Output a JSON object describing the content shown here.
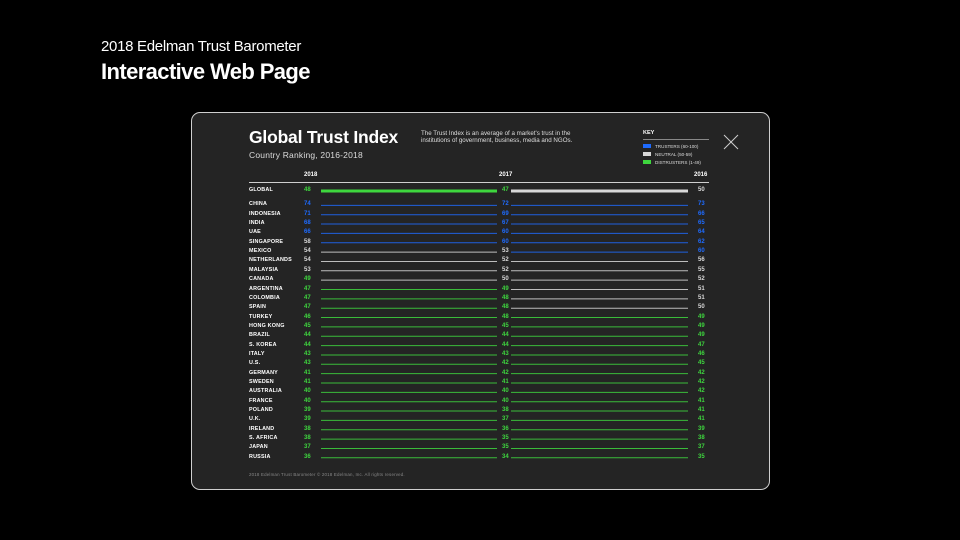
{
  "page": {
    "kicker": "2018 Edelman Trust Barometer",
    "heading": "Interactive Web Page"
  },
  "colors": {
    "background": "#000000",
    "panel": "#242424",
    "trusters": "#1e6bff",
    "neutral": "#d8d8d8",
    "distrusters": "#3ed63e"
  },
  "icons": {
    "close": "close-icon"
  },
  "chart_header": {
    "description": "The Trust Index is an average of a market's trust in the institutions of government, business, media and NGOs.",
    "key_title": "KEY",
    "key_items": [
      {
        "label": "TRUSTERS (60-100)",
        "color": "#1e6bff"
      },
      {
        "label": "NEUTRAL (50-59)",
        "color": "#d8d8d8"
      },
      {
        "label": "DISTRUSTERS (1-49)",
        "color": "#3ed63e"
      }
    ],
    "footer": "2018 Edelman Trust Barometer © 2018 Edelman, Inc. All rights reserved."
  },
  "chart_data": {
    "type": "line",
    "title": "Global Trust Index",
    "subtitle": "Country Ranking, 2016-2018",
    "years": [
      "2018",
      "2017",
      "2016"
    ],
    "rows": [
      {
        "country": "GLOBAL",
        "y2018": 48,
        "y2017": 47,
        "y2016": 50
      },
      {
        "country": "CHINA",
        "y2018": 74,
        "y2017": 72,
        "y2016": 73
      },
      {
        "country": "INDONESIA",
        "y2018": 71,
        "y2017": 69,
        "y2016": 66
      },
      {
        "country": "INDIA",
        "y2018": 68,
        "y2017": 67,
        "y2016": 65
      },
      {
        "country": "UAE",
        "y2018": 66,
        "y2017": 60,
        "y2016": 64
      },
      {
        "country": "SINGAPORE",
        "y2018": 58,
        "y2017": 60,
        "y2016": 62
      },
      {
        "country": "MEXICO",
        "y2018": 54,
        "y2017": 53,
        "y2016": 60
      },
      {
        "country": "NETHERLANDS",
        "y2018": 54,
        "y2017": 52,
        "y2016": 56
      },
      {
        "country": "MALAYSIA",
        "y2018": 53,
        "y2017": 52,
        "y2016": 55
      },
      {
        "country": "CANADA",
        "y2018": 49,
        "y2017": 50,
        "y2016": 52
      },
      {
        "country": "ARGENTINA",
        "y2018": 47,
        "y2017": 49,
        "y2016": 51
      },
      {
        "country": "COLOMBIA",
        "y2018": 47,
        "y2017": 48,
        "y2016": 51
      },
      {
        "country": "SPAIN",
        "y2018": 47,
        "y2017": 48,
        "y2016": 50
      },
      {
        "country": "TURKEY",
        "y2018": 46,
        "y2017": 48,
        "y2016": 49
      },
      {
        "country": "HONG KONG",
        "y2018": 45,
        "y2017": 45,
        "y2016": 49
      },
      {
        "country": "BRAZIL",
        "y2018": 44,
        "y2017": 44,
        "y2016": 49
      },
      {
        "country": "S. KOREA",
        "y2018": 44,
        "y2017": 44,
        "y2016": 47
      },
      {
        "country": "ITALY",
        "y2018": 43,
        "y2017": 43,
        "y2016": 46
      },
      {
        "country": "U.S.",
        "y2018": 43,
        "y2017": 42,
        "y2016": 45
      },
      {
        "country": "GERMANY",
        "y2018": 41,
        "y2017": 42,
        "y2016": 42
      },
      {
        "country": "SWEDEN",
        "y2018": 41,
        "y2017": 41,
        "y2016": 42
      },
      {
        "country": "AUSTRALIA",
        "y2018": 40,
        "y2017": 40,
        "y2016": 42
      },
      {
        "country": "FRANCE",
        "y2018": 40,
        "y2017": 40,
        "y2016": 41
      },
      {
        "country": "POLAND",
        "y2018": 39,
        "y2017": 38,
        "y2016": 41
      },
      {
        "country": "U.K.",
        "y2018": 39,
        "y2017": 37,
        "y2016": 41
      },
      {
        "country": "IRELAND",
        "y2018": 38,
        "y2017": 36,
        "y2016": 39
      },
      {
        "country": "S. AFRICA",
        "y2018": 38,
        "y2017": 35,
        "y2016": 38
      },
      {
        "country": "JAPAN",
        "y2018": 37,
        "y2017": 35,
        "y2016": 37
      },
      {
        "country": "RUSSIA",
        "y2018": 36,
        "y2017": 34,
        "y2016": 35
      }
    ],
    "xlabel": "",
    "ylabel": ""
  }
}
